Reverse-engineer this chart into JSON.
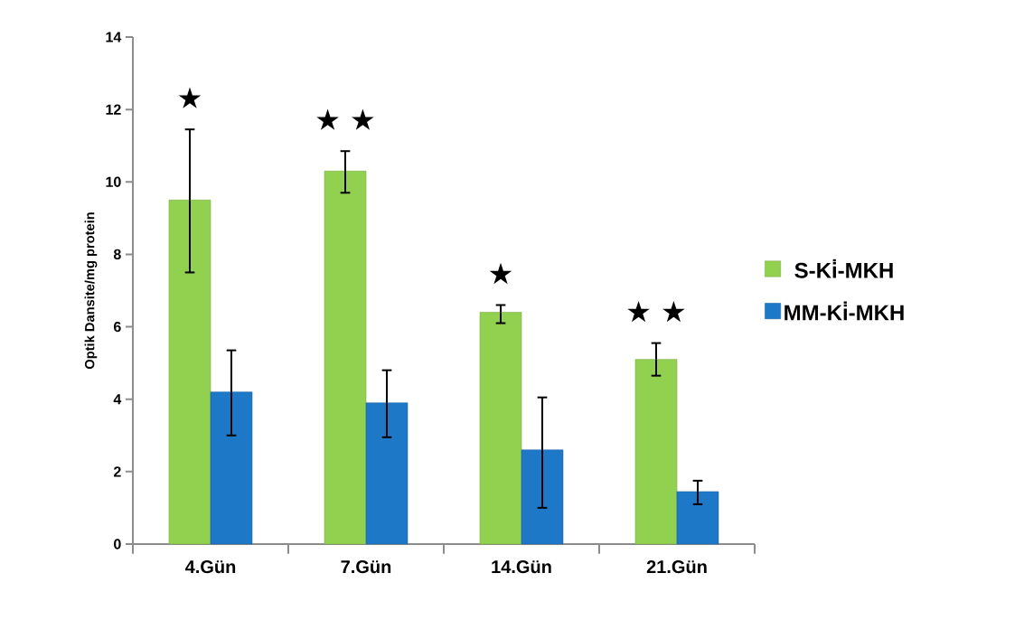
{
  "chart_data": {
    "type": "bar",
    "ylabel": "Optik Dansite/mg protein",
    "categories": [
      "4.Gün",
      "7.Gün",
      "14.Gün",
      "21.Gün"
    ],
    "series": [
      {
        "name": "S-Ki̇-MKH",
        "color": "#92d050",
        "values": [
          9.5,
          10.3,
          6.4,
          5.1
        ],
        "errors": [
          [
            7.5,
            11.45
          ],
          [
            9.7,
            10.85
          ],
          [
            6.1,
            6.6
          ],
          [
            4.65,
            5.55
          ]
        ]
      },
      {
        "name": "MM-Ki̇-MKH",
        "color": "#1e78c8",
        "values": [
          4.2,
          3.9,
          2.6,
          1.45
        ],
        "errors": [
          [
            3.0,
            5.35
          ],
          [
            2.95,
            4.8
          ],
          [
            1.0,
            4.05
          ],
          [
            1.1,
            1.75
          ]
        ]
      }
    ],
    "ylim": [
      0,
      14
    ],
    "yticks": [
      0,
      2,
      4,
      6,
      8,
      10,
      12,
      14
    ],
    "grid": false,
    "legend": "right",
    "annotations": [
      "★",
      "★ ★",
      "★",
      "★ ★"
    ]
  }
}
